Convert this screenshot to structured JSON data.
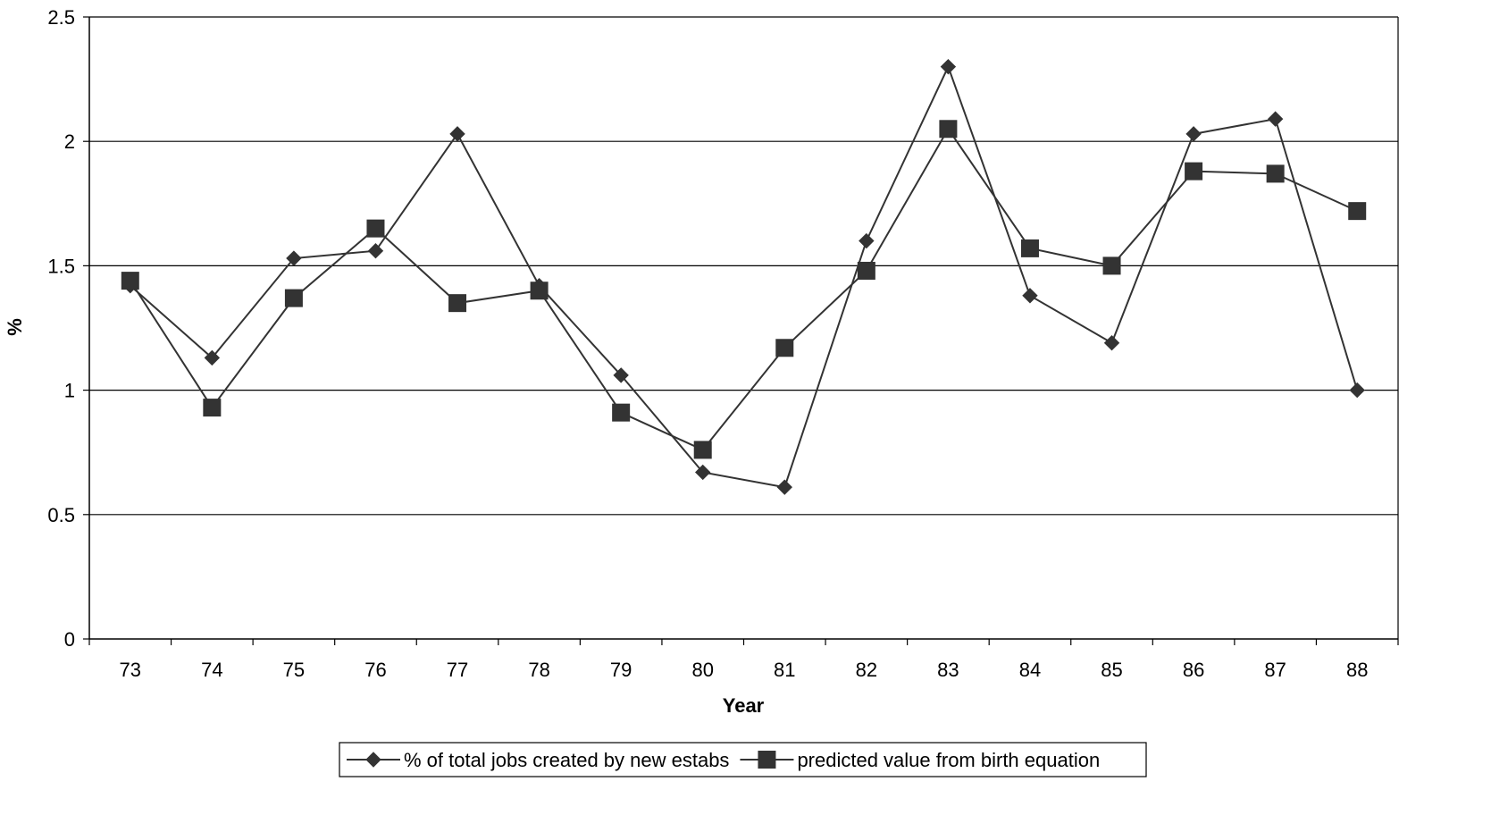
{
  "chart_data": {
    "type": "line",
    "xlabel": "Year",
    "ylabel": "%",
    "ylim": [
      0,
      2.5
    ],
    "yticks": [
      "0",
      "0.5",
      "1",
      "1.5",
      "2",
      "2.5"
    ],
    "categories": [
      "73",
      "74",
      "75",
      "76",
      "77",
      "78",
      "79",
      "80",
      "81",
      "82",
      "83",
      "84",
      "85",
      "86",
      "87",
      "88"
    ],
    "grid": "horizontal",
    "legend_position": "bottom",
    "series": [
      {
        "name": "% of total jobs created by new estabs",
        "marker": "diamond",
        "color": "#333333",
        "values": [
          1.42,
          1.13,
          1.53,
          1.56,
          2.03,
          1.42,
          1.06,
          0.67,
          0.61,
          1.6,
          2.3,
          1.38,
          1.19,
          2.03,
          2.09,
          1.0
        ]
      },
      {
        "name": "predicted value from birth equation",
        "marker": "square",
        "color": "#333333",
        "values": [
          1.44,
          0.93,
          1.37,
          1.65,
          1.35,
          1.4,
          0.91,
          0.76,
          1.17,
          1.48,
          2.05,
          1.57,
          1.5,
          1.88,
          1.87,
          1.72
        ]
      }
    ]
  }
}
